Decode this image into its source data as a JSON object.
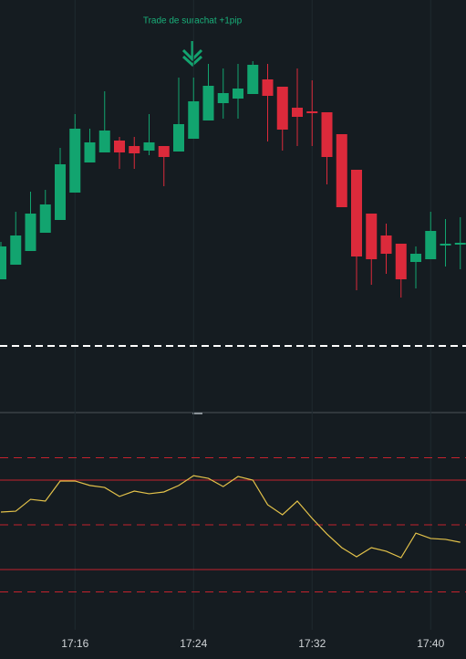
{
  "chart_data": [
    {
      "type": "candlestick",
      "annotation": "Trade de surachat +1pip",
      "categories": [
        null,
        null,
        null,
        null,
        null,
        "17:16",
        null,
        null,
        null,
        null,
        null,
        null,
        null,
        "17:24",
        null,
        null,
        null,
        null,
        null,
        null,
        null,
        "17:32",
        null,
        null,
        null,
        null,
        null,
        null,
        null,
        "17:40",
        null,
        null
      ],
      "open": [
        144,
        160,
        175,
        195,
        209,
        239,
        272,
        283,
        296,
        290,
        285,
        290,
        284,
        298,
        318,
        337,
        342,
        347,
        363,
        355,
        332,
        328,
        327,
        303,
        264,
        216,
        192,
        183,
        163,
        166,
        181,
        182
      ],
      "high": [
        185,
        218,
        240,
        242,
        288,
        325,
        309,
        350,
        300,
        300,
        325,
        290,
        365,
        365,
        380,
        375,
        380,
        383,
        380,
        355,
        375,
        362,
        327,
        303,
        264,
        216,
        205,
        183,
        180,
        218,
        210,
        212
      ],
      "low": [
        144,
        160,
        175,
        195,
        209,
        239,
        272,
        283,
        265,
        265,
        280,
        246,
        284,
        298,
        318,
        320,
        320,
        347,
        295,
        285,
        290,
        290,
        248,
        223,
        132,
        138,
        150,
        124,
        134,
        166,
        158,
        155
      ],
      "close": [
        180,
        192,
        216,
        226,
        270,
        309,
        294,
        307,
        283,
        282,
        294,
        278,
        314,
        339,
        356,
        348,
        353,
        379,
        345,
        308,
        322,
        326,
        278,
        223,
        169,
        166,
        172,
        144,
        172,
        197,
        183,
        184
      ],
      "up_color": "#12a46f",
      "down_color": "#dc2a3b",
      "price_line": 71,
      "ylim": [
        0,
        450
      ]
    },
    {
      "type": "line",
      "values": [
        55.7,
        56.1,
        61.4,
        60.6,
        69.6,
        69.6,
        67.6,
        66.7,
        62.7,
        65.1,
        63.9,
        64.7,
        67.6,
        72.0,
        70.8,
        67.1,
        71.6,
        70,
        59.0,
        54.5,
        60.6,
        52.9,
        45.9,
        39.8,
        35.7,
        39.8,
        38.2,
        35.3,
        46.3,
        43.9,
        43.5,
        42.2
      ],
      "color": "#e3c24a",
      "dashed_levels": [
        80,
        50,
        20
      ],
      "solid_levels": [
        70,
        30
      ],
      "level_color": "#c4222d",
      "ylim": [
        0,
        100
      ]
    }
  ]
}
